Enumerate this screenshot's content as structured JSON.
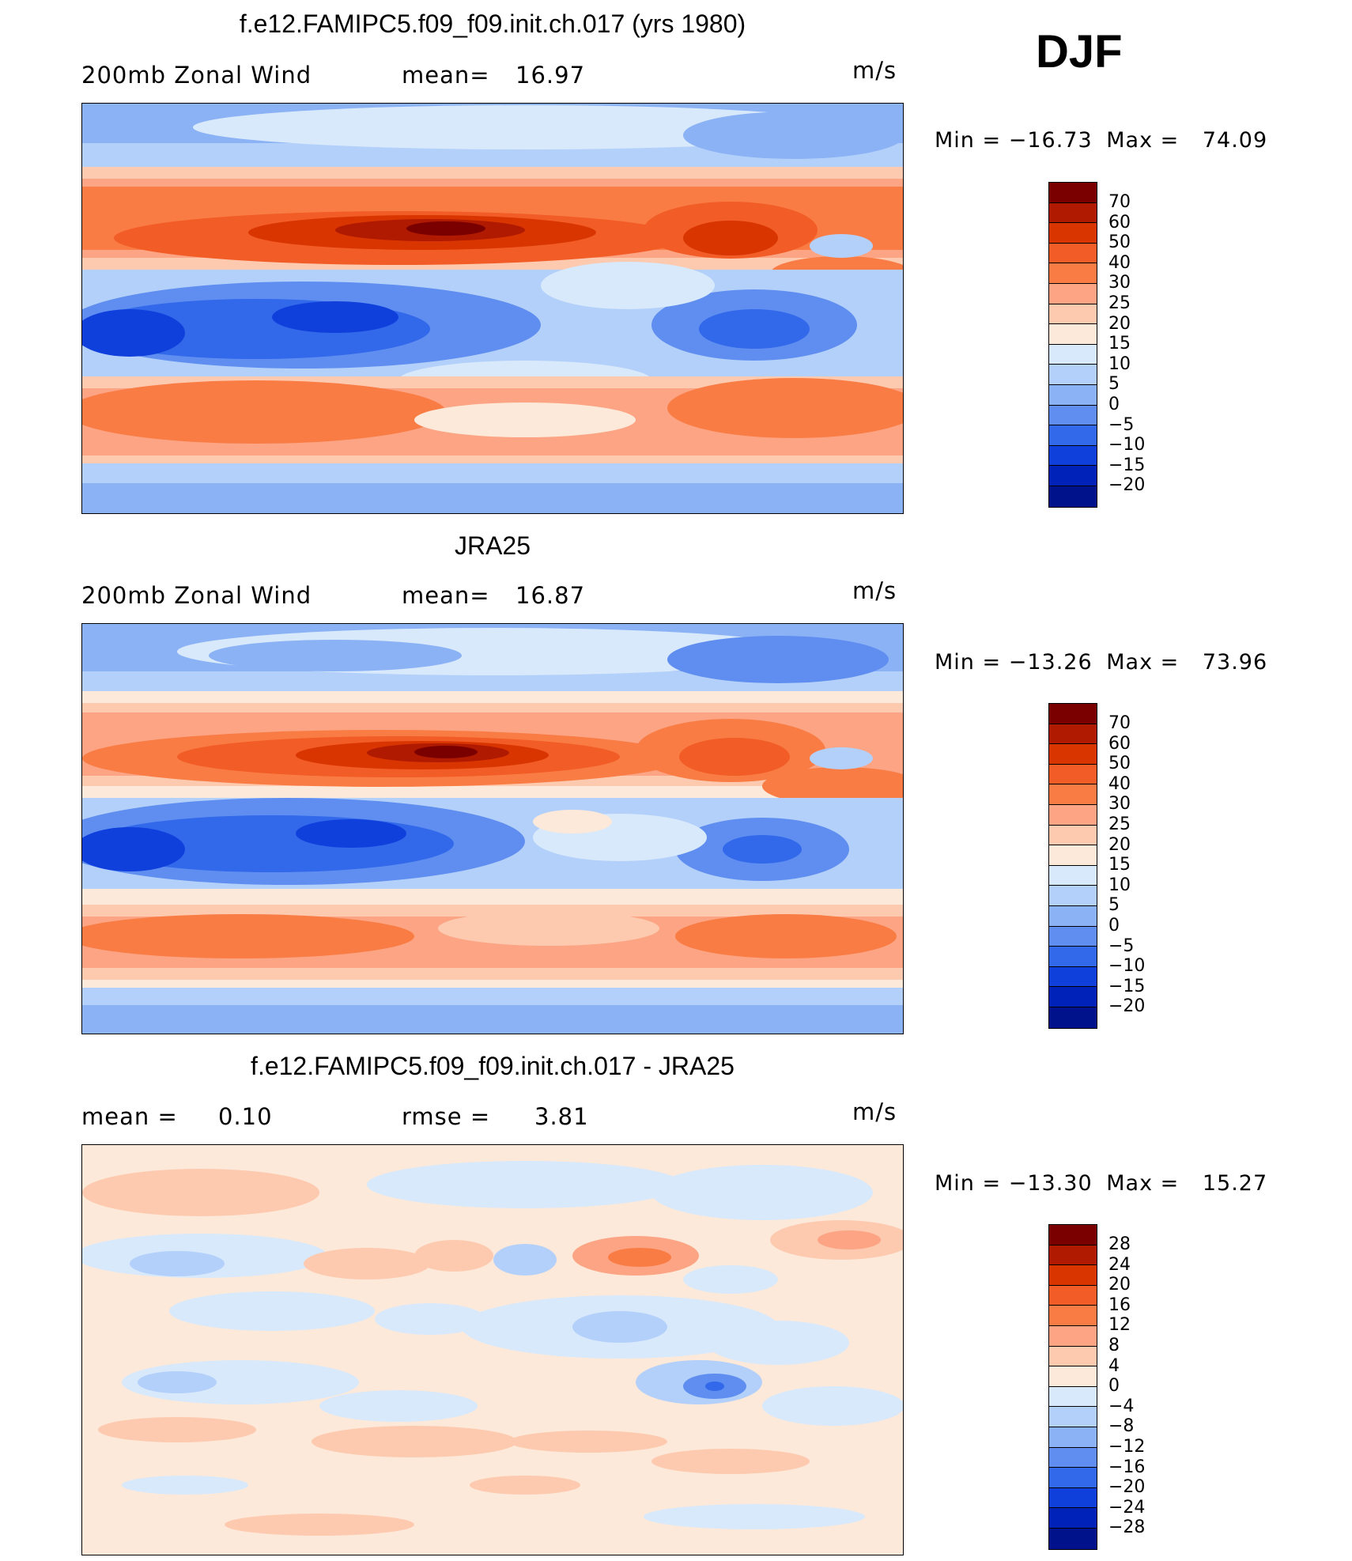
{
  "season": "DJF",
  "panels": [
    {
      "title": "f.e12.FAMIPC5.f09_f09.init.ch.017 (yrs 1980)",
      "left_label": "200mb  Zonal  Wind",
      "stat_label": "mean=",
      "stat_value": "16.97",
      "units": "m/s",
      "min_label": "Min  =",
      "min_value": "−16.73",
      "max_label": "Max  =",
      "max_value": "74.09",
      "colorbar_labels": [
        "70",
        "60",
        "50",
        "40",
        "30",
        "25",
        "20",
        "15",
        "10",
        "5",
        "0",
        "−5",
        "−10",
        "−15",
        "−20"
      ]
    },
    {
      "title": "JRA25",
      "left_label": "200mb  Zonal  Wind",
      "stat_label": "mean=",
      "stat_value": "16.87",
      "units": "m/s",
      "min_label": "Min  =",
      "min_value": "−13.26",
      "max_label": "Max  =",
      "max_value": "73.96",
      "colorbar_labels": [
        "70",
        "60",
        "50",
        "40",
        "30",
        "25",
        "20",
        "15",
        "10",
        "5",
        "0",
        "−5",
        "−10",
        "−15",
        "−20"
      ]
    },
    {
      "title": "f.e12.FAMIPC5.f09_f09.init.ch.017 - JRA25",
      "left_label": "mean  =",
      "left_value": "0.10",
      "stat_label": "rmse  =",
      "stat_value": "3.81",
      "units": "m/s",
      "min_label": "Min  =",
      "min_value": "−13.30",
      "max_label": "Max  =",
      "max_value": "15.27",
      "colorbar_labels": [
        "28",
        "24",
        "20",
        "16",
        "12",
        "8",
        "4",
        "0",
        "−4",
        "−8",
        "−12",
        "−16",
        "−20",
        "−24",
        "−28"
      ]
    }
  ],
  "colors": {
    "field_scale": [
      "#7a0000",
      "#b01a00",
      "#d93500",
      "#f25c26",
      "#fa7c45",
      "#fca483",
      "#fdcab0",
      "#fde9d9",
      "#d8e9fb",
      "#b3d0fa",
      "#8cb2f6",
      "#5f8ef0",
      "#3268ea",
      "#1040dc",
      "#0022b8",
      "#00118c"
    ],
    "diff_scale": [
      "#7a0000",
      "#b01a00",
      "#d93500",
      "#f25c26",
      "#fa7c45",
      "#fca483",
      "#fdcab0",
      "#fde9d9",
      "#d8e9fb",
      "#b3d0fa",
      "#8cb2f6",
      "#5f8ef0",
      "#3268ea",
      "#1040dc",
      "#0022b8",
      "#00118c"
    ]
  }
}
